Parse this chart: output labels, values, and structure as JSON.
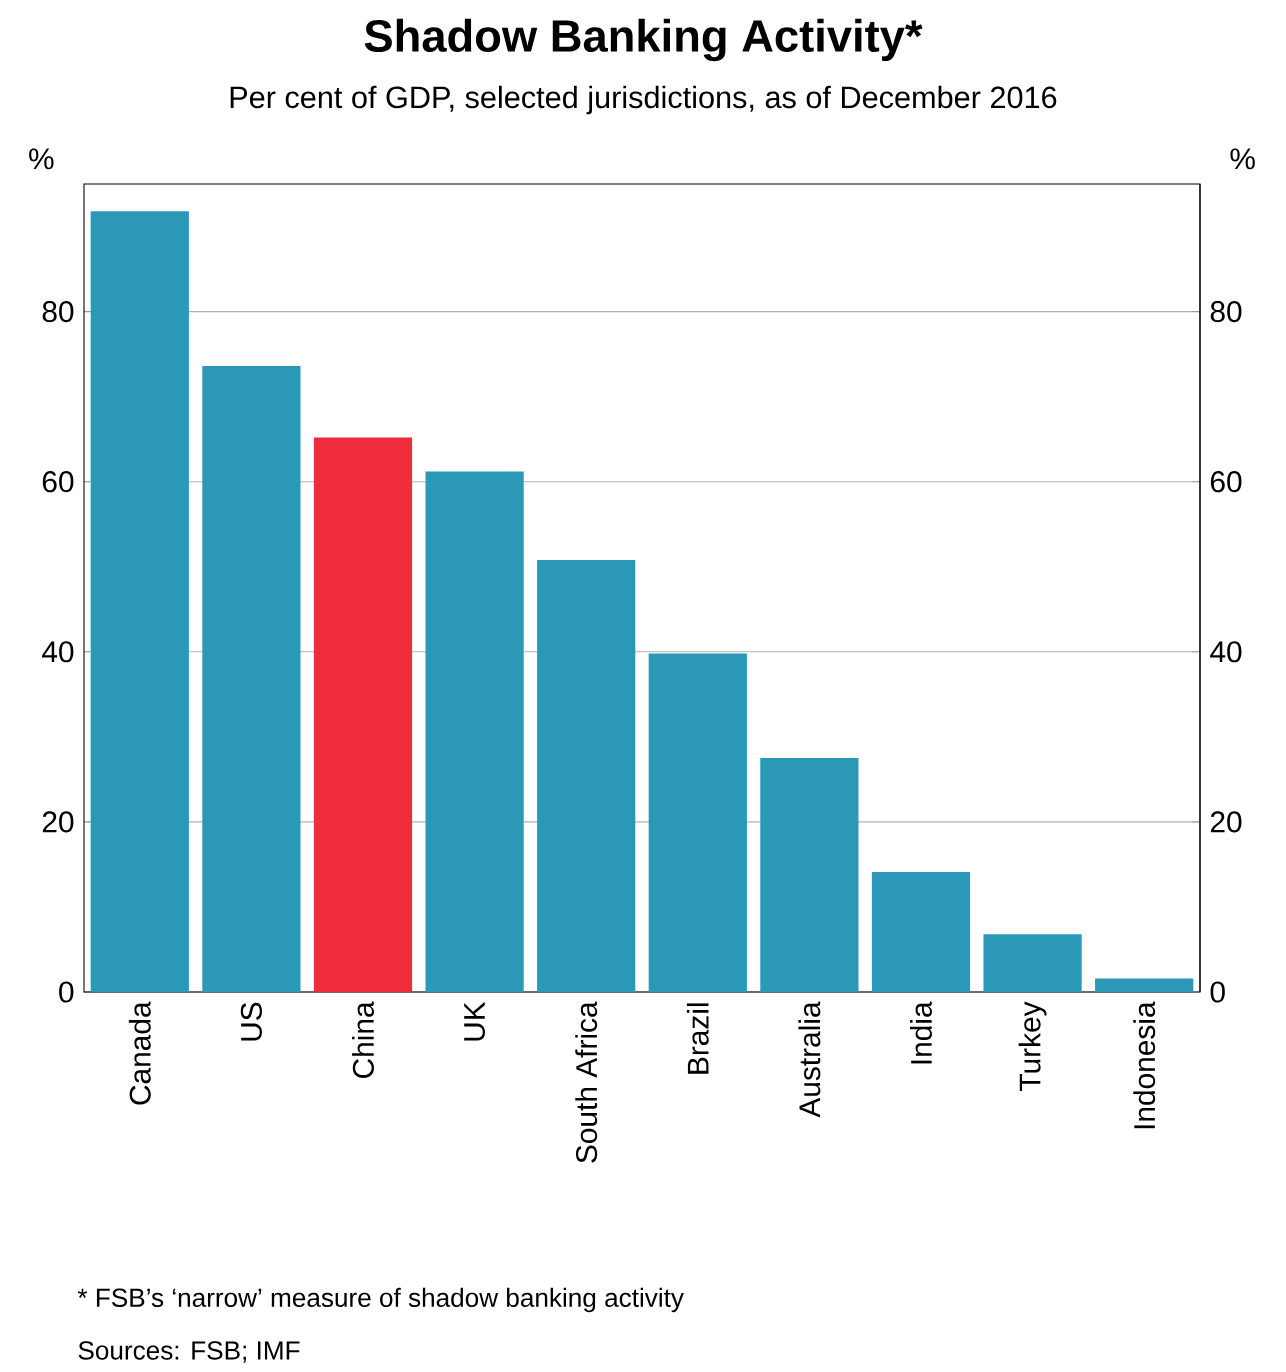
{
  "chart_data": {
    "type": "bar",
    "title": "Shadow Banking Activity*",
    "subtitle": "Per cent of GDP, selected jurisdictions, as of December 2016",
    "ylabel": "%",
    "y2label": "%",
    "categories": [
      "Canada",
      "US",
      "China",
      "UK",
      "South Africa",
      "Brazil",
      "Australia",
      "India",
      "Turkey",
      "Indonesia"
    ],
    "values": [
      91.8,
      73.6,
      65.2,
      61.2,
      50.8,
      39.8,
      27.5,
      14.1,
      6.8,
      1.6
    ],
    "colors": [
      "#2b98b8",
      "#2b98b8",
      "#ef2b3c",
      "#2b98b8",
      "#2b98b8",
      "#2b98b8",
      "#2b98b8",
      "#2b98b8",
      "#2b98b8",
      "#2b98b8"
    ],
    "ylim": [
      0,
      95
    ],
    "yticks": [
      0,
      20,
      40,
      60,
      80
    ],
    "y2lim": [
      0,
      95
    ],
    "y2ticks": [
      0,
      20,
      40,
      60,
      80
    ],
    "grid": "y",
    "annotations": [
      "*     FSB’s ‘narrow’ measure of shadow banking activity",
      "Sources:  FSB; IMF"
    ]
  }
}
